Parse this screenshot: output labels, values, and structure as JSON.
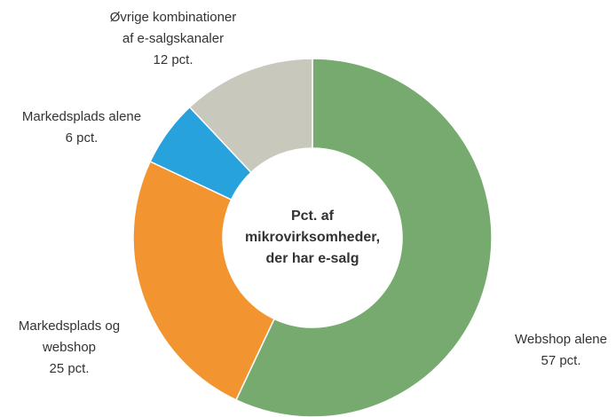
{
  "chart_data": {
    "type": "pie",
    "center_label": "Pct. af\nmikrovirksomheder,\nder har e-salg",
    "categories": [
      "Webshop alene",
      "Markedsplads og\nwebshop",
      "Markedsplads alene",
      "Øvrige kombinationer\naf e-salgskanaler"
    ],
    "values": [
      57,
      25,
      6,
      12
    ],
    "value_labels": [
      "57 pct.",
      "25 pct.",
      "6 pct.",
      "12 pct."
    ],
    "colors": [
      "#76aa6f",
      "#f29530",
      "#27a2dc",
      "#c9c8bd"
    ]
  }
}
